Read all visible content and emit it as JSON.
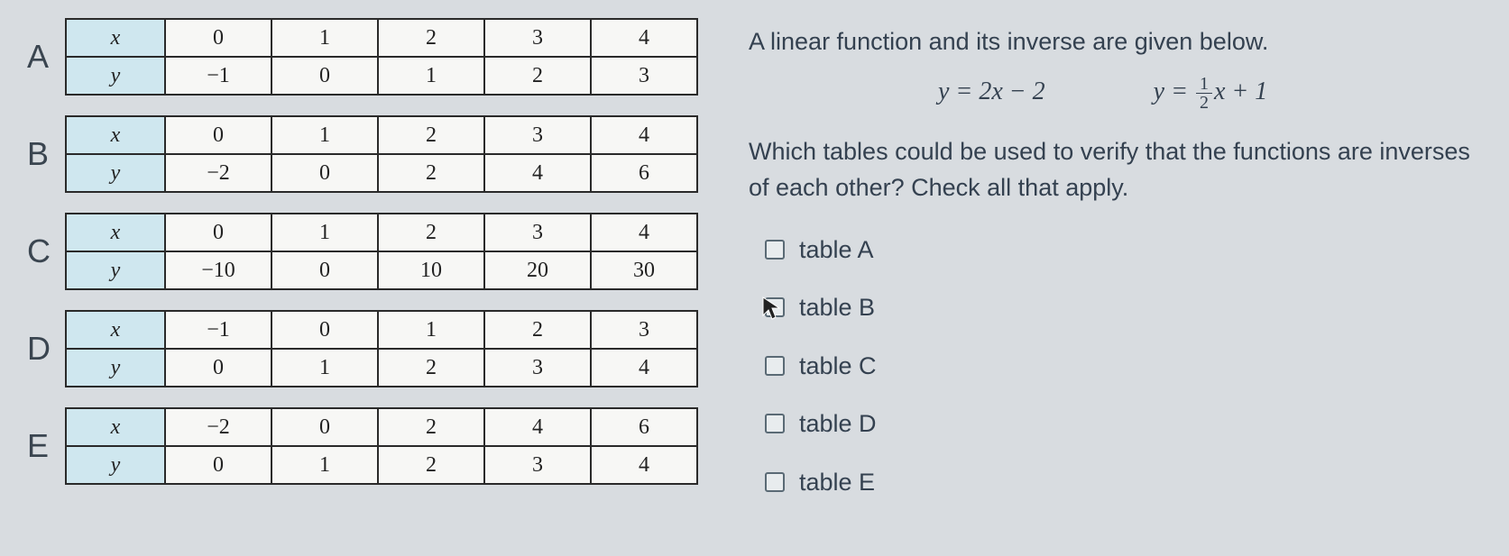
{
  "tables": [
    {
      "label": "A",
      "rows": [
        [
          "x",
          "0",
          "1",
          "2",
          "3",
          "4"
        ],
        [
          "y",
          "−1",
          "0",
          "1",
          "2",
          "3"
        ]
      ]
    },
    {
      "label": "B",
      "rows": [
        [
          "x",
          "0",
          "1",
          "2",
          "3",
          "4"
        ],
        [
          "y",
          "−2",
          "0",
          "2",
          "4",
          "6"
        ]
      ]
    },
    {
      "label": "C",
      "rows": [
        [
          "x",
          "0",
          "1",
          "2",
          "3",
          "4"
        ],
        [
          "y",
          "−10",
          "0",
          "10",
          "20",
          "30"
        ]
      ]
    },
    {
      "label": "D",
      "rows": [
        [
          "x",
          "−1",
          "0",
          "1",
          "2",
          "3"
        ],
        [
          "y",
          "0",
          "1",
          "2",
          "3",
          "4"
        ]
      ]
    },
    {
      "label": "E",
      "rows": [
        [
          "x",
          "−2",
          "0",
          "2",
          "4",
          "6"
        ],
        [
          "y",
          "0",
          "1",
          "2",
          "3",
          "4"
        ]
      ]
    }
  ],
  "prompt": {
    "line1": "A linear function and its inverse are given below.",
    "eq1": "y = 2x − 2",
    "eq2_pre": "y = ",
    "eq2_num": "1",
    "eq2_den": "2",
    "eq2_post": "x + 1",
    "line2": "Which tables could be used to verify that the functions are inverses of each other? Check all that apply."
  },
  "options": [
    {
      "label": "table A",
      "cursor": false
    },
    {
      "label": "table B",
      "cursor": true
    },
    {
      "label": "table C",
      "cursor": false
    },
    {
      "label": "table D",
      "cursor": false
    },
    {
      "label": "table E",
      "cursor": false
    }
  ],
  "style": {
    "header_bg": "#cfe7ef",
    "cell_bg": "#f7f7f5",
    "border": "#2a2a2a",
    "page_bg": "#d8dce0",
    "text": "#344150"
  }
}
